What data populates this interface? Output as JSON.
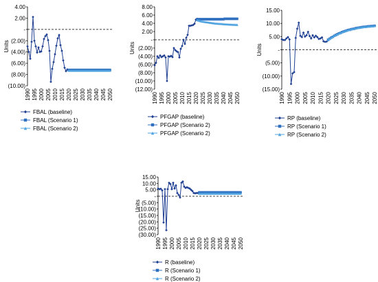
{
  "chart_data": [
    {
      "id": "fbal",
      "type": "line",
      "ylabel": "Units",
      "ylim": [
        -10,
        4
      ],
      "ytick_labels": [
        "4.00",
        "2.00",
        "-",
        "(2.00)",
        "(4.00)",
        "(6.00)",
        "(8.00)",
        "(10.00)"
      ],
      "yticks": [
        4,
        2,
        0,
        -2,
        -4,
        -6,
        -8,
        -10
      ],
      "xlim": [
        1990,
        2050
      ],
      "xticks": [
        "1990",
        "1995",
        "2000",
        "2005",
        "2010",
        "2015",
        "2020",
        "2025",
        "2030",
        "2035",
        "2040",
        "2045",
        "2050"
      ],
      "legend_position": "bottom",
      "series": [
        {
          "name": "FBAL (baseline)",
          "color": "#1f3f93",
          "marker": "diamond",
          "x": [
            1990,
            1991,
            1992,
            1993,
            1994,
            1995,
            1996,
            1997,
            1998,
            1999,
            2000,
            2001,
            2002,
            2003,
            2004,
            2005,
            2006,
            2007,
            2008,
            2009,
            2010,
            2011,
            2012,
            2013,
            2014,
            2015,
            2016,
            2017,
            2018,
            2019,
            2020
          ],
          "y": [
            -3.0,
            -4.0,
            -5.2,
            -2.2,
            2.2,
            -2.0,
            -3.0,
            -4.1,
            -3.2,
            -4.0,
            -3.9,
            -3.0,
            -1.7,
            -1.2,
            -0.9,
            -1.9,
            -3.8,
            -9.3,
            -7.0,
            -5.8,
            -4.4,
            -2.9,
            -1.6,
            -1.0,
            -2.8,
            -3.8,
            -5.5,
            -6.8,
            -7.4,
            -7.1,
            -7.2
          ]
        },
        {
          "name": "FBAL (Scenario 1)",
          "color": "#2e6fc0",
          "marker": "square",
          "x": [
            2020,
            2021,
            2022,
            2023,
            2024,
            2025,
            2026,
            2027,
            2028,
            2029,
            2030,
            2031,
            2032,
            2033,
            2034,
            2035,
            2036,
            2037,
            2038,
            2039,
            2040,
            2041,
            2042,
            2043,
            2044,
            2045,
            2046,
            2047,
            2048,
            2049,
            2050
          ],
          "y": [
            -7.2,
            -7.2,
            -7.2,
            -7.2,
            -7.2,
            -7.2,
            -7.2,
            -7.2,
            -7.2,
            -7.2,
            -7.2,
            -7.2,
            -7.2,
            -7.2,
            -7.2,
            -7.2,
            -7.2,
            -7.2,
            -7.2,
            -7.2,
            -7.2,
            -7.2,
            -7.2,
            -7.2,
            -7.2,
            -7.2,
            -7.2,
            -7.2,
            -7.2,
            -7.2,
            -7.2
          ]
        },
        {
          "name": "FBAL (Scenario 2)",
          "color": "#4fa3e0",
          "marker": "triangle",
          "x": [
            2020,
            2021,
            2022,
            2023,
            2024,
            2025,
            2026,
            2027,
            2028,
            2029,
            2030,
            2031,
            2032,
            2033,
            2034,
            2035,
            2036,
            2037,
            2038,
            2039,
            2040,
            2041,
            2042,
            2043,
            2044,
            2045,
            2046,
            2047,
            2048,
            2049,
            2050
          ],
          "y": [
            -7.3,
            -7.3,
            -7.3,
            -7.3,
            -7.3,
            -7.3,
            -7.3,
            -7.3,
            -7.3,
            -7.3,
            -7.3,
            -7.3,
            -7.3,
            -7.3,
            -7.3,
            -7.3,
            -7.3,
            -7.3,
            -7.3,
            -7.3,
            -7.3,
            -7.3,
            -7.3,
            -7.3,
            -7.3,
            -7.3,
            -7.3,
            -7.3,
            -7.3,
            -7.3,
            -7.3
          ]
        }
      ]
    },
    {
      "id": "pfgap",
      "type": "line",
      "ylabel": "Units",
      "ylim": [
        -12,
        8
      ],
      "ytick_labels": [
        "8.00",
        "6.00",
        "4.00",
        "2.00",
        "-",
        "(2.00)",
        "(4.00)",
        "(6.00)",
        "(8.00)",
        "(10.00)",
        "(12.00)"
      ],
      "yticks": [
        8,
        6,
        4,
        2,
        0,
        -2,
        -4,
        -6,
        -8,
        -10,
        -12
      ],
      "xlim": [
        1990,
        2050
      ],
      "xticks": [
        "1990",
        "1995",
        "2000",
        "2005",
        "2010",
        "2015",
        "2020",
        "2025",
        "2030",
        "2035",
        "2040",
        "2045",
        "2050"
      ],
      "legend_position": "bottom",
      "series": [
        {
          "name": "PFGAP (baseline)",
          "color": "#1f3f93",
          "marker": "diamond",
          "x": [
            1990,
            1991,
            1992,
            1993,
            1994,
            1995,
            1996,
            1997,
            1998,
            1999,
            2000,
            2001,
            2002,
            2003,
            2004,
            2005,
            2006,
            2007,
            2008,
            2009,
            2010,
            2011,
            2012,
            2013,
            2014,
            2015,
            2016,
            2017,
            2018,
            2019,
            2020,
            2021
          ],
          "y": [
            -6.2,
            -5.6,
            -4.0,
            -4.4,
            -3.8,
            -4.2,
            -4.0,
            -3.8,
            -4.3,
            -10.0,
            -4.0,
            -4.1,
            -3.9,
            -4.2,
            -2.0,
            -2.5,
            -2.8,
            -3.0,
            -4.3,
            -2.2,
            -1.5,
            0.0,
            -1.0,
            0.5,
            1.2,
            3.4,
            3.4,
            3.5,
            3.6,
            3.9,
            4.9,
            5.1
          ]
        },
        {
          "name": "PFGAP (Scenario 2)",
          "color": "#2e6fc0",
          "marker": "square",
          "x": [
            2021,
            2022,
            2023,
            2024,
            2025,
            2026,
            2027,
            2028,
            2029,
            2030,
            2031,
            2032,
            2033,
            2034,
            2035,
            2036,
            2037,
            2038,
            2039,
            2040,
            2041,
            2042,
            2043,
            2044,
            2045,
            2046,
            2047,
            2048,
            2049,
            2050
          ],
          "y": [
            5.0,
            5.0,
            5.0,
            5.0,
            5.0,
            5.0,
            5.0,
            5.0,
            5.0,
            5.0,
            5.0,
            5.0,
            5.0,
            5.0,
            5.0,
            5.0,
            5.0,
            5.0,
            5.0,
            5.0,
            5.1,
            5.1,
            5.1,
            5.1,
            5.1,
            5.1,
            5.1,
            5.1,
            5.1,
            5.1
          ]
        },
        {
          "name": "PFGAP (Scenario 2)",
          "color": "#4fa3e0",
          "marker": "triangle",
          "x": [
            2021,
            2022,
            2023,
            2024,
            2025,
            2026,
            2027,
            2028,
            2029,
            2030,
            2031,
            2032,
            2033,
            2034,
            2035,
            2036,
            2037,
            2038,
            2039,
            2040,
            2041,
            2042,
            2043,
            2044,
            2045,
            2046,
            2047,
            2048,
            2049,
            2050
          ],
          "y": [
            4.8,
            4.7,
            4.6,
            4.5,
            4.45,
            4.4,
            4.35,
            4.3,
            4.25,
            4.2,
            4.15,
            4.1,
            4.05,
            4.0,
            3.98,
            3.95,
            3.92,
            3.9,
            3.88,
            3.85,
            3.82,
            3.8,
            3.78,
            3.76,
            3.74,
            3.72,
            3.7,
            3.69,
            3.68,
            3.67
          ]
        }
      ]
    },
    {
      "id": "rp",
      "type": "line",
      "ylabel": "Units",
      "ylim": [
        -15,
        15
      ],
      "ytick_labels": [
        "15.00",
        "10.00",
        "5.00",
        "-",
        "(5.00)",
        "(10.00)",
        "(15.00)"
      ],
      "yticks": [
        15,
        10,
        5,
        0,
        -5,
        -10,
        -15
      ],
      "xlim": [
        1990,
        2050
      ],
      "xticks": [
        "1990",
        "1995",
        "2000",
        "2005",
        "2010",
        "2015",
        "2020",
        "2025",
        "2030",
        "2035",
        "2040",
        "2045",
        "2050"
      ],
      "legend_position": "bottom",
      "series": [
        {
          "name": "RP (baseline)",
          "color": "#1f3f93",
          "marker": "diamond",
          "x": [
            1990,
            1991,
            1992,
            1993,
            1994,
            1995,
            1996,
            1997,
            1998,
            1999,
            2000,
            2001,
            2002,
            2003,
            2004,
            2005,
            2006,
            2007,
            2008,
            2009,
            2010,
            2011,
            2012,
            2013,
            2014,
            2015,
            2016,
            2017,
            2018,
            2019,
            2020
          ],
          "y": [
            4.0,
            3.7,
            3.7,
            4.3,
            4.8,
            3.9,
            -13.0,
            -9.0,
            -8.5,
            4.5,
            8.0,
            10.3,
            5.3,
            4.8,
            6.5,
            5.0,
            5.5,
            6.8,
            5.2,
            4.3,
            5.5,
            4.7,
            5.3,
            4.8,
            4.1,
            4.3,
            4.7,
            3.2,
            3.0,
            3.1,
            3.6
          ]
        },
        {
          "name": "RP (Scenario 1)",
          "color": "#2e6fc0",
          "marker": "square",
          "x": [
            2020,
            2021,
            2022,
            2023,
            2024,
            2025,
            2026,
            2027,
            2028,
            2029,
            2030,
            2031,
            2032,
            2033,
            2034,
            2035,
            2036,
            2037,
            2038,
            2039,
            2040,
            2041,
            2042,
            2043,
            2044,
            2045,
            2046,
            2047,
            2048,
            2049,
            2050
          ],
          "y": [
            3.8,
            4.2,
            4.6,
            4.9,
            5.3,
            5.6,
            5.9,
            6.2,
            6.4,
            6.7,
            6.9,
            7.1,
            7.3,
            7.5,
            7.6,
            7.8,
            7.9,
            8.0,
            8.2,
            8.3,
            8.4,
            8.5,
            8.6,
            8.7,
            8.7,
            8.8,
            8.9,
            8.9,
            9.0,
            9.0,
            9.1
          ]
        },
        {
          "name": "RP (Scenario 2)",
          "color": "#4fa3e0",
          "marker": "triangle",
          "x": [
            2020,
            2021,
            2022,
            2023,
            2024,
            2025,
            2026,
            2027,
            2028,
            2029,
            2030,
            2031,
            2032,
            2033,
            2034,
            2035,
            2036,
            2037,
            2038,
            2039,
            2040,
            2041,
            2042,
            2043,
            2044,
            2045,
            2046,
            2047,
            2048,
            2049,
            2050
          ],
          "y": [
            3.8,
            4.2,
            4.6,
            4.9,
            5.3,
            5.6,
            5.9,
            6.2,
            6.4,
            6.7,
            6.9,
            7.1,
            7.3,
            7.5,
            7.6,
            7.8,
            7.9,
            8.0,
            8.2,
            8.3,
            8.4,
            8.5,
            8.6,
            8.7,
            8.7,
            8.8,
            8.9,
            8.9,
            9.0,
            9.0,
            9.1
          ]
        }
      ]
    },
    {
      "id": "r",
      "type": "line",
      "ylabel": "Units",
      "ylim": [
        -30,
        15
      ],
      "ytick_labels": [
        "15.00",
        "10.00",
        "5.00",
        "-",
        "(5.00)",
        "(10.00)",
        "(15.00)",
        "(20.00)",
        "(25.00)",
        "(30.00)"
      ],
      "yticks": [
        15,
        10,
        5,
        0,
        -5,
        -10,
        -15,
        -20,
        -25,
        -30
      ],
      "xlim": [
        1990,
        2050
      ],
      "xticks": [
        "1990",
        "1995",
        "2000",
        "2005",
        "2010",
        "2015",
        "2020",
        "2025",
        "2030",
        "2035",
        "2040",
        "2045",
        "2050"
      ],
      "legend_position": "bottom",
      "series": [
        {
          "name": "R (baseline)",
          "color": "#1f3f93",
          "marker": "diamond",
          "x": [
            1990,
            1991,
            1992,
            1993,
            1994,
            1995,
            1996,
            1997,
            1998,
            1999,
            2000,
            2001,
            2002,
            2003,
            2004,
            2005,
            2006,
            2007,
            2008,
            2009,
            2010,
            2011,
            2012,
            2013,
            2014,
            2015,
            2016,
            2017,
            2018,
            2019,
            2020
          ],
          "y": [
            6.0,
            5.5,
            5.8,
            4.5,
            -20.5,
            5.5,
            -26.5,
            5.5,
            10.5,
            9.5,
            5.5,
            10.5,
            6.0,
            8.5,
            2.5,
            1.0,
            -1.0,
            10.5,
            11.5,
            7.5,
            6.5,
            7.0,
            6.5,
            6.0,
            5.0,
            4.0,
            2.5,
            2.3,
            2.5,
            2.5,
            2.5
          ]
        },
        {
          "name": "R (Scenario 1)",
          "color": "#2e6fc0",
          "marker": "square",
          "x": [
            2020,
            2021,
            2022,
            2023,
            2024,
            2025,
            2026,
            2027,
            2028,
            2029,
            2030,
            2031,
            2032,
            2033,
            2034,
            2035,
            2036,
            2037,
            2038,
            2039,
            2040,
            2041,
            2042,
            2043,
            2044,
            2045,
            2046,
            2047,
            2048,
            2049,
            2050
          ],
          "y": [
            3.0,
            3.0,
            3.0,
            3.0,
            3.0,
            3.0,
            3.0,
            3.0,
            3.0,
            3.0,
            3.0,
            3.0,
            3.0,
            3.0,
            3.0,
            3.0,
            3.0,
            3.0,
            3.0,
            3.0,
            3.0,
            3.0,
            3.0,
            3.0,
            3.0,
            3.0,
            3.0,
            3.0,
            3.0,
            3.0,
            3.0
          ]
        },
        {
          "name": "R (Scenario 2)",
          "color": "#4fa3e0",
          "marker": "triangle",
          "x": [
            2020,
            2021,
            2022,
            2023,
            2024,
            2025,
            2026,
            2027,
            2028,
            2029,
            2030,
            2031,
            2032,
            2033,
            2034,
            2035,
            2036,
            2037,
            2038,
            2039,
            2040,
            2041,
            2042,
            2043,
            2044,
            2045,
            2046,
            2047,
            2048,
            2049,
            2050
          ],
          "y": [
            2.2,
            2.2,
            2.2,
            2.2,
            2.2,
            2.2,
            2.2,
            2.2,
            2.2,
            2.2,
            2.2,
            2.2,
            2.2,
            2.2,
            2.2,
            2.2,
            2.2,
            2.2,
            2.2,
            2.2,
            2.2,
            2.2,
            2.2,
            2.2,
            2.2,
            2.2,
            2.2,
            2.2,
            2.2,
            2.2,
            2.2
          ]
        }
      ]
    }
  ]
}
